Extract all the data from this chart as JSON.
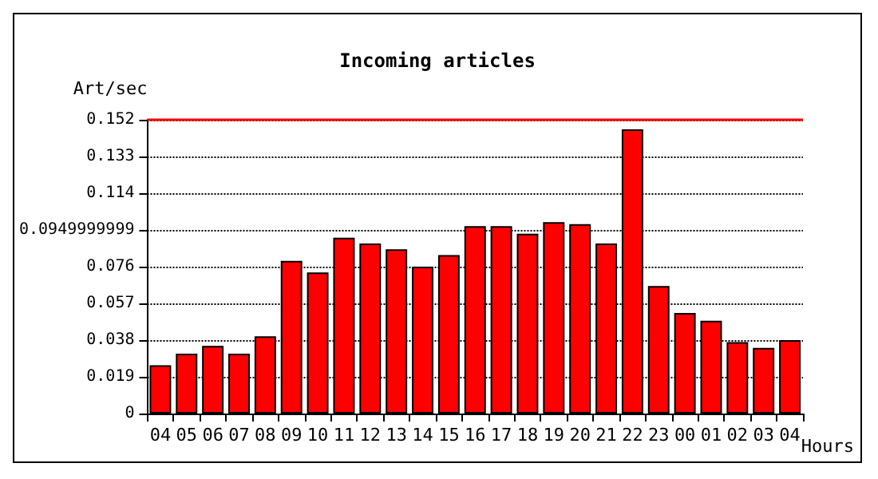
{
  "chart_data": {
    "type": "bar",
    "title": "Incoming articles",
    "ylabel": "Art/sec",
    "xlabel": "Hours",
    "categories": [
      "04",
      "05",
      "06",
      "07",
      "08",
      "09",
      "10",
      "11",
      "12",
      "13",
      "14",
      "15",
      "16",
      "17",
      "18",
      "19",
      "20",
      "21",
      "22",
      "23",
      "00",
      "01",
      "02",
      "03",
      "04"
    ],
    "values": [
      0.025,
      0.031,
      0.035,
      0.031,
      0.04,
      0.079,
      0.073,
      0.091,
      0.088,
      0.085,
      0.076,
      0.082,
      0.097,
      0.097,
      0.093,
      0.099,
      0.098,
      0.088,
      0.147,
      0.066,
      0.052,
      0.048,
      0.037,
      0.034,
      0.038
    ],
    "color": "#ff0000",
    "ylim": [
      0,
      0.152
    ],
    "yticks": [
      0,
      0.019,
      0.038,
      0.057,
      0.076,
      0.0949999999,
      0.114,
      0.133,
      0.152
    ],
    "grid": "y",
    "line_style": "dotted",
    "ref_lines": [
      {
        "axis": "y",
        "value": 0.152,
        "color": "#ff0000"
      }
    ]
  }
}
